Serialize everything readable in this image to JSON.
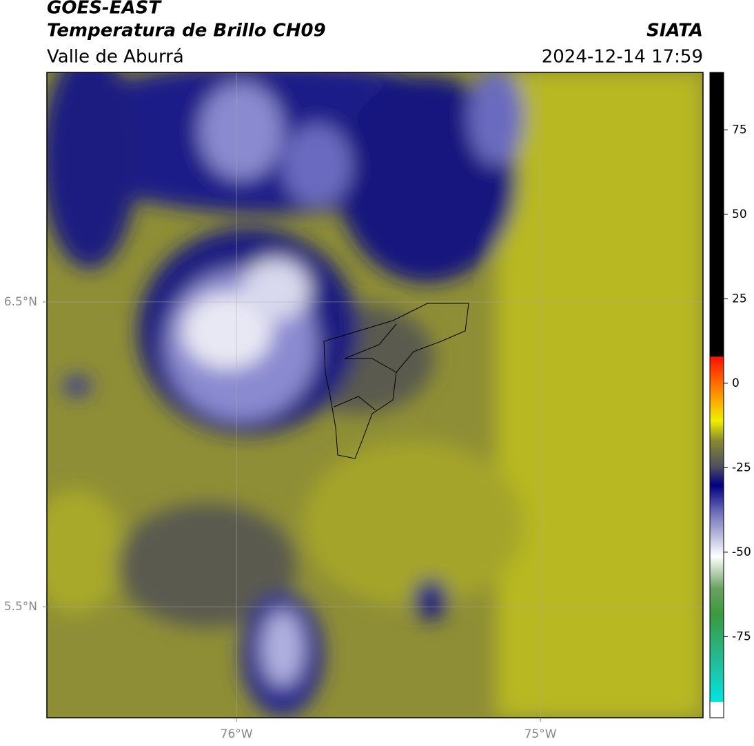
{
  "header": {
    "title": "GOES-EAST",
    "subtitle": "Temperatura de Brillo CH09",
    "region": "Valle de Aburrá",
    "source": "SIATA",
    "timestamp": "2024-12-14 17:59"
  },
  "map": {
    "xlim": [
      -76.624,
      -74.465
    ],
    "ylim": [
      5.136,
      7.253
    ],
    "xticks": [
      {
        "value": -76,
        "label": "76°W"
      },
      {
        "value": -75,
        "label": "75°W"
      }
    ],
    "yticks": [
      {
        "value": 6.5,
        "label": "6.5°N"
      },
      {
        "value": 5.5,
        "label": "5.5°N"
      }
    ],
    "grid": true
  },
  "colorbar": {
    "lim": [
      -99,
      92
    ],
    "ticks": [
      75,
      50,
      25,
      0,
      -25,
      -50,
      -75
    ]
  }
}
